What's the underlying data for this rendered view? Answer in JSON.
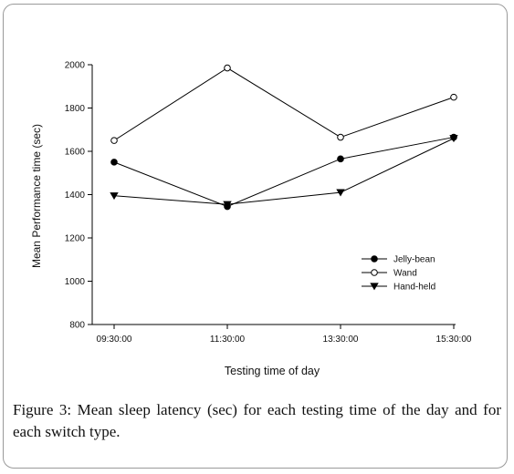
{
  "chart_data": {
    "type": "line",
    "xlabel": "Testing time of day",
    "ylabel": "Mean Performance time (sec)",
    "categories": [
      "09:30:00",
      "11:30:00",
      "13:30:00",
      "15:30:00"
    ],
    "ylim": [
      800,
      2000
    ],
    "yticks": [
      800,
      1000,
      1200,
      1400,
      1600,
      1800,
      2000
    ],
    "grid": false,
    "legend_position": "lower-right",
    "series": [
      {
        "name": "Jelly-bean",
        "marker": "filled-circle",
        "values": [
          1550,
          1345,
          1565,
          1665
        ]
      },
      {
        "name": "Wand",
        "marker": "open-circle",
        "values": [
          1650,
          1985,
          1665,
          1850
        ]
      },
      {
        "name": "Hand-held",
        "marker": "filled-triangle-down",
        "values": [
          1395,
          1355,
          1410,
          1660
        ]
      }
    ]
  },
  "caption": {
    "label": "Figure 3:",
    "text": " Mean sleep latency (sec) for each testing time of the day and for each switch type."
  },
  "colors": {
    "line": "#000000",
    "frame": "#9a9a9a"
  }
}
